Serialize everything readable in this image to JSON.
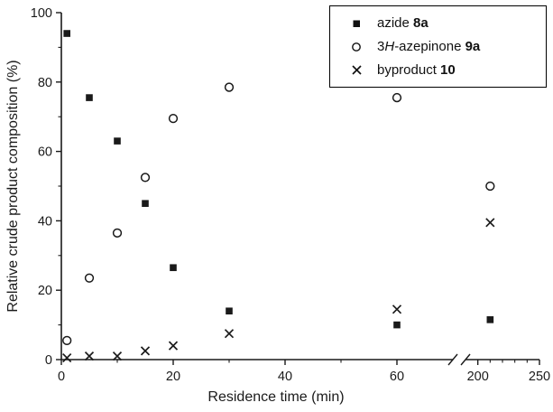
{
  "colors": {
    "foreground": "#1a1a1a",
    "background": "#ffffff"
  },
  "chart_data": {
    "type": "scatter",
    "title": "",
    "xlabel": "Residence time (min)",
    "ylabel": "Relative crude product composition (%)",
    "xlim": [
      0,
      250
    ],
    "ylim": [
      0,
      100
    ],
    "x_ticks": [
      0,
      20,
      40,
      60,
      200,
      250
    ],
    "x_minor_ticks": [
      10,
      30,
      50,
      210,
      220,
      230,
      240
    ],
    "y_ticks": [
      0,
      20,
      40,
      60,
      80,
      100
    ],
    "y_minor_ticks": [
      10,
      30,
      50,
      70,
      90
    ],
    "axis_break": {
      "axis": "x",
      "between": [
        70,
        190
      ]
    },
    "grid": false,
    "legend_position": "top-right",
    "series": [
      {
        "name": "azide 8a",
        "marker": "filled-square",
        "points": [
          [
            1,
            94
          ],
          [
            5,
            75.5
          ],
          [
            10,
            63
          ],
          [
            15,
            45
          ],
          [
            20,
            26.5
          ],
          [
            30,
            14
          ],
          [
            60,
            10
          ],
          [
            210,
            11.5
          ]
        ]
      },
      {
        "name": "3H-azepinone 9a",
        "marker": "open-circle",
        "points": [
          [
            1,
            5.5
          ],
          [
            5,
            23.5
          ],
          [
            10,
            36.5
          ],
          [
            15,
            52.5
          ],
          [
            20,
            69.5
          ],
          [
            30,
            78.5
          ],
          [
            60,
            75.5
          ],
          [
            210,
            50
          ]
        ]
      },
      {
        "name": "byproduct 10",
        "marker": "x-cross",
        "points": [
          [
            1,
            0.5
          ],
          [
            5,
            1
          ],
          [
            10,
            1
          ],
          [
            15,
            2.5
          ],
          [
            20,
            4
          ],
          [
            30,
            7.5
          ],
          [
            60,
            14.5
          ],
          [
            210,
            39.5
          ]
        ]
      }
    ]
  },
  "legend": {
    "items": [
      {
        "marker": "filled-square",
        "parts": [
          {
            "t": "azide ",
            "s": "n"
          },
          {
            "t": "8a",
            "s": "b"
          }
        ]
      },
      {
        "marker": "open-circle",
        "parts": [
          {
            "t": "3",
            "s": "n"
          },
          {
            "t": "H",
            "s": "i"
          },
          {
            "t": "-azepinone ",
            "s": "n"
          },
          {
            "t": "9a",
            "s": "b"
          }
        ]
      },
      {
        "marker": "x-cross",
        "parts": [
          {
            "t": "byproduct ",
            "s": "n"
          },
          {
            "t": "10",
            "s": "b"
          }
        ]
      }
    ]
  }
}
